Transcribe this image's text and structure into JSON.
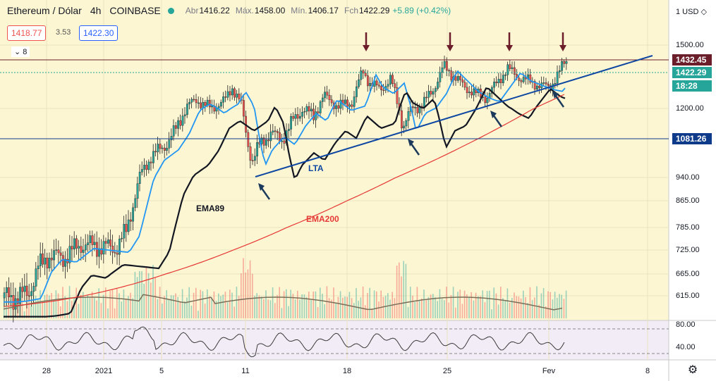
{
  "header": {
    "symbol": "Ethereum / Dólar",
    "timeframe": "4h",
    "exchange": "COINBASE",
    "open_label": "Abr",
    "open": "1416.22",
    "high_label": "Máx.",
    "high": "1458.00",
    "low_label": "Mín.",
    "low": "1406.17",
    "close_label": "Fch",
    "close": "1422.29",
    "change": "+5.89 (+0.42%)"
  },
  "trade": {
    "sell": "1418.77",
    "spread": "3.53",
    "buy": "1422.30"
  },
  "indicators_toggle": "8",
  "price_axis": {
    "currency": "1 USD ◇",
    "labels": [
      "1500.00",
      "1200.00",
      "940.00",
      "865.00",
      "785.00",
      "725.00",
      "665.00",
      "615.00"
    ],
    "rsi_labels": [
      "80.00",
      "40.00"
    ]
  },
  "price_tags": {
    "high_line": "1432.45",
    "last_price": "1422.29",
    "countdown": "18:28",
    "support_line": "1081.26"
  },
  "time_axis": [
    "28",
    "2021",
    "5",
    "11",
    "18",
    "25",
    "Fev",
    "8"
  ],
  "annotations": {
    "lta": "LTA",
    "ema89": "EMA89",
    "ema200": "EMA200"
  },
  "chart_data": {
    "type": "candlestick",
    "title": "Ethereum / Dólar · 4h · COINBASE",
    "lines": [
      "EMA89",
      "EMA200",
      "LTA"
    ],
    "horizontal_levels": [
      1432.45,
      1081.26
    ],
    "last_close": 1422.29,
    "ylim_approx": [
      580,
      1560
    ]
  },
  "colors": {
    "up": "#26a69a",
    "down": "#ef5350",
    "ema_short": "#2196f3",
    "ema89": "#131722",
    "ema200": "#e53935",
    "lta": "#0d47a1",
    "arrow_down": "#6b1d2a",
    "arrow_up": "#1b3a5c",
    "bg": "#fdf6d3"
  }
}
